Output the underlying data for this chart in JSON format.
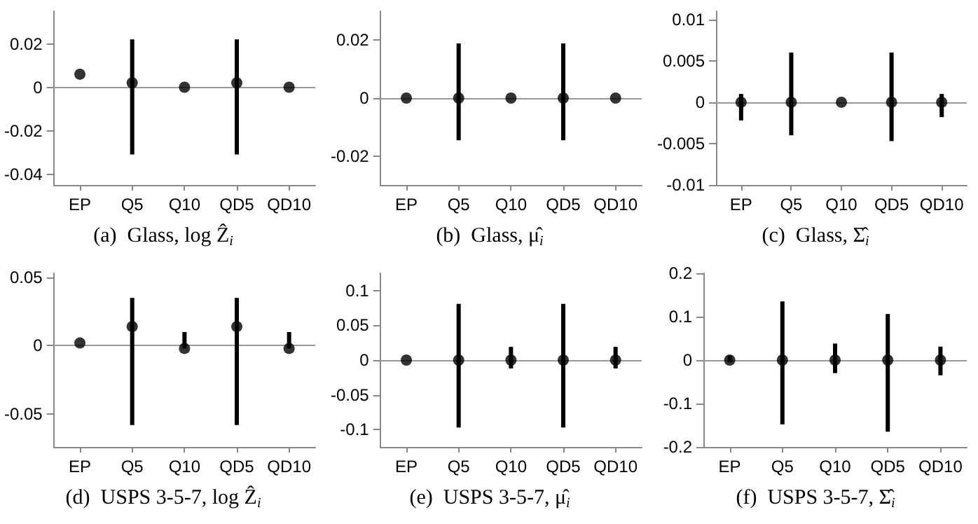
{
  "chart_data": [
    {
      "type": "scatter",
      "title": "(a)  Glass, log Ẑ$_{i}$",
      "categories": [
        "EP",
        "Q5",
        "Q10",
        "QD5",
        "QD10"
      ],
      "values": [
        0.006,
        0.002,
        0,
        0.002,
        0
      ],
      "errors": [
        null,
        [
          -0.031,
          0.022
        ],
        null,
        [
          -0.031,
          0.022
        ],
        null
      ],
      "color": "#000000",
      "ylim": [
        -0.045,
        0.035
      ],
      "yticks": [
        -0.04,
        -0.02,
        0,
        0.02
      ],
      "ref_lines": [
        {
          "axis": "y",
          "value": 0,
          "color": "#999999"
        }
      ],
      "marker": "circle",
      "grid": false
    },
    {
      "type": "scatter",
      "title": "(b)  Glass, μ̂$_{i}$",
      "categories": [
        "EP",
        "Q5",
        "Q10",
        "QD5",
        "QD10"
      ],
      "values": [
        0,
        0,
        0,
        0,
        0
      ],
      "errors": [
        null,
        [
          -0.0146,
          0.0189
        ],
        null,
        [
          -0.0146,
          0.0189
        ],
        null
      ],
      "color": "#000000",
      "ylim": [
        -0.03,
        0.03
      ],
      "yticks": [
        -0.02,
        0,
        0.02
      ],
      "ref_lines": [
        {
          "axis": "y",
          "value": 0,
          "color": "#999999"
        }
      ],
      "marker": "circle",
      "grid": false
    },
    {
      "type": "scatter",
      "title": "(c)  Glass, Σ̂$_{i}$",
      "categories": [
        "EP",
        "Q5",
        "Q10",
        "QD5",
        "QD10"
      ],
      "values": [
        0,
        0,
        0,
        0,
        0
      ],
      "errors": [
        [
          -0.0022,
          0.001
        ],
        [
          -0.004,
          0.006
        ],
        null,
        [
          -0.0047,
          0.006
        ],
        [
          -0.0018,
          0.001
        ]
      ],
      "color": "#000000",
      "ylim": [
        -0.01,
        0.011
      ],
      "yticks": [
        -0.01,
        -0.005,
        0,
        0.005,
        0.01
      ],
      "ref_lines": [
        {
          "axis": "y",
          "value": 0,
          "color": "#999999"
        }
      ],
      "marker": "circle",
      "grid": false
    },
    {
      "type": "scatter",
      "title": "(d)  USPS 3-5-7, log Ẑ$_{i}$",
      "categories": [
        "EP",
        "Q5",
        "Q10",
        "QD5",
        "QD10"
      ],
      "values": [
        0.002,
        0.014,
        -0.002,
        0.014,
        -0.002
      ],
      "errors": [
        null,
        [
          -0.058,
          0.035
        ],
        [
          -0.002,
          0.01
        ],
        [
          -0.058,
          0.035
        ],
        [
          -0.002,
          0.01
        ]
      ],
      "color": "#000000",
      "ylim": [
        -0.074,
        0.053
      ],
      "yticks": [
        -0.05,
        0,
        0.05
      ],
      "ref_lines": [
        {
          "axis": "y",
          "value": 0,
          "color": "#999999"
        }
      ],
      "marker": "circle",
      "grid": false
    },
    {
      "type": "scatter",
      "title": "(e)  USPS 3-5-7, μ̂$_{i}$",
      "categories": [
        "EP",
        "Q5",
        "Q10",
        "QD5",
        "QD10"
      ],
      "values": [
        0,
        0,
        0,
        0,
        0
      ],
      "errors": [
        null,
        [
          -0.097,
          0.081
        ],
        [
          -0.012,
          0.019
        ],
        [
          -0.097,
          0.081
        ],
        [
          -0.012,
          0.019
        ]
      ],
      "color": "#000000",
      "ylim": [
        -0.125,
        0.125
      ],
      "yticks": [
        -0.1,
        -0.05,
        0,
        0.05,
        0.1
      ],
      "ref_lines": [
        {
          "axis": "y",
          "value": 0,
          "color": "#999999"
        }
      ],
      "marker": "circle",
      "grid": false
    },
    {
      "type": "scatter",
      "title": "(f)  USPS 3-5-7, Σ̂$_{i}$",
      "categories": [
        "EP",
        "Q5",
        "Q10",
        "QD5",
        "QD10"
      ],
      "values": [
        0,
        0,
        0,
        0,
        0
      ],
      "errors": [
        [
          -0.005,
          0.01
        ],
        [
          -0.148,
          0.135
        ],
        [
          -0.03,
          0.038
        ],
        [
          -0.165,
          0.106
        ],
        [
          -0.035,
          0.031
        ]
      ],
      "color": "#000000",
      "ylim": [
        -0.2,
        0.2
      ],
      "yticks": [
        -0.2,
        -0.1,
        0,
        0.1,
        0.2
      ],
      "ref_lines": [
        {
          "axis": "y",
          "value": 0,
          "color": "#999999"
        }
      ],
      "marker": "circle",
      "grid": false
    }
  ]
}
